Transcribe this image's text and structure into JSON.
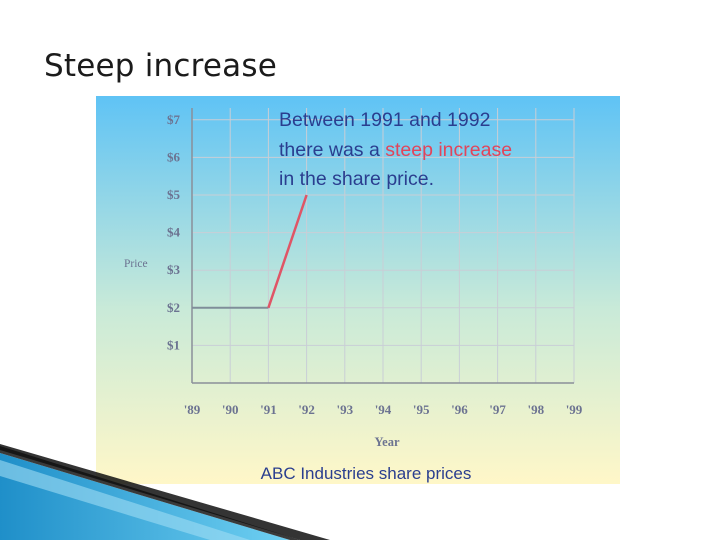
{
  "slide": {
    "title": "Steep increase"
  },
  "chart_data": {
    "type": "line",
    "title": "ABC Industries share prices",
    "xlabel": "Year",
    "ylabel": "Price",
    "categories": [
      "'89",
      "'90",
      "'91",
      "'92",
      "'93",
      "'94",
      "'95",
      "'96",
      "'97",
      "'98",
      "'99"
    ],
    "x": [
      1989,
      1990,
      1991,
      1992
    ],
    "values": [
      2,
      2,
      2,
      5
    ],
    "xlim": [
      1989,
      1999
    ],
    "ylim": [
      0,
      7
    ],
    "yticks": [
      "$1",
      "$2",
      "$3",
      "$4",
      "$5",
      "$6",
      "$7"
    ],
    "ytick_values": [
      1,
      2,
      3,
      4,
      5,
      6,
      7
    ],
    "grid": true,
    "line_color": "#e05566",
    "annotation": {
      "line1": "Between 1991 and 1992",
      "line2_prefix": "there was a ",
      "line2_highlight": "steep increase",
      "line3": "in the share price.",
      "text_color": "#2a3e8f",
      "highlight_color": "#e2445a"
    },
    "background_gradient": [
      "#5fc3f5",
      "#fff7c8"
    ]
  }
}
